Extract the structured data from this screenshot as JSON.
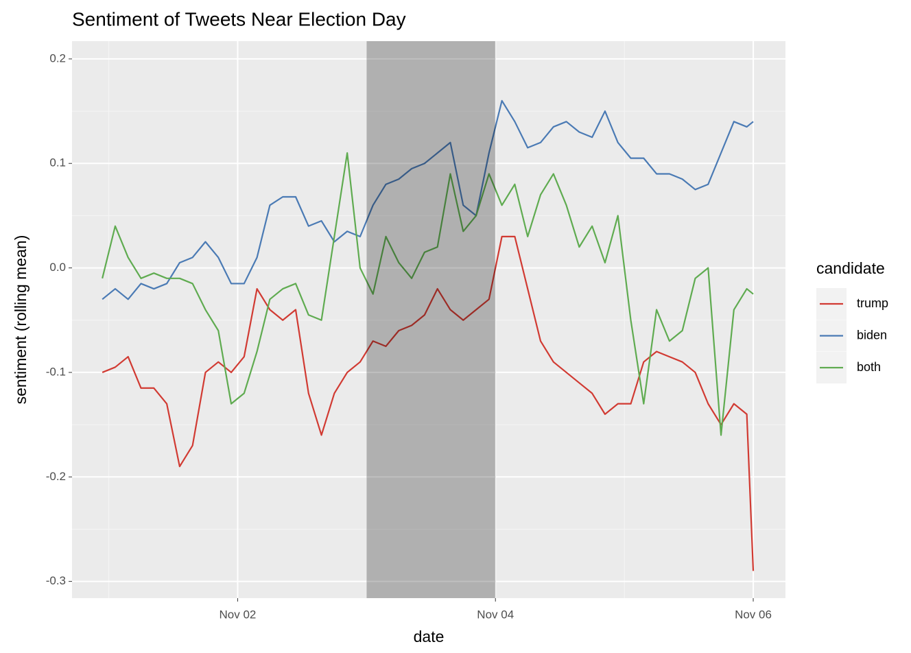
{
  "chart_data": {
    "type": "line",
    "title": "Sentiment of Tweets Near Election Day",
    "x_label": "date",
    "y_label": "sentiment (rolling mean)",
    "legend_title": "candidate",
    "legend": "right",
    "grid": true,
    "highlight": {
      "xlim": [
        3,
        4
      ],
      "color": "#000000",
      "opacity": 0.25
    },
    "xlim": [
      0.715,
      6.25
    ],
    "ylim": [
      -0.316,
      0.217
    ],
    "xticks": [
      {
        "value": 2,
        "label": "Nov 02"
      },
      {
        "value": 4,
        "label": "Nov 04"
      },
      {
        "value": 6,
        "label": "Nov 06"
      }
    ],
    "x_minor_ticks": [
      1,
      3,
      5
    ],
    "yticks": [
      {
        "value": -0.3,
        "label": "-0.3"
      },
      {
        "value": -0.2,
        "label": "-0.2"
      },
      {
        "value": -0.1,
        "label": "-0.1"
      },
      {
        "value": 0,
        "label": "0.0"
      },
      {
        "value": 0.1,
        "label": "0.1"
      },
      {
        "value": 0.2,
        "label": "0.2"
      }
    ],
    "y_minor_ticks": [
      -0.25,
      -0.15,
      -0.05,
      0.05,
      0.15
    ],
    "x": [
      0.95,
      1.05,
      1.15,
      1.25,
      1.35,
      1.45,
      1.55,
      1.65,
      1.75,
      1.85,
      1.95,
      2.05,
      2.15,
      2.25,
      2.35,
      2.45,
      2.55,
      2.65,
      2.75,
      2.85,
      2.95,
      3.05,
      3.15,
      3.25,
      3.35,
      3.45,
      3.55,
      3.65,
      3.75,
      3.85,
      3.95,
      4.05,
      4.15,
      4.25,
      4.35,
      4.45,
      4.55,
      4.65,
      4.75,
      4.85,
      4.95,
      5.05,
      5.15,
      5.25,
      5.35,
      5.45,
      5.55,
      5.65,
      5.75,
      5.85,
      5.95,
      6.0
    ],
    "series": [
      {
        "name": "trump",
        "color": "#d13a32",
        "values": [
          -0.1,
          -0.095,
          -0.085,
          -0.115,
          -0.115,
          -0.13,
          -0.19,
          -0.17,
          -0.1,
          -0.09,
          -0.1,
          -0.085,
          -0.02,
          -0.04,
          -0.05,
          -0.04,
          -0.12,
          -0.16,
          -0.12,
          -0.1,
          -0.09,
          -0.07,
          -0.075,
          -0.06,
          -0.055,
          -0.045,
          -0.02,
          -0.04,
          -0.05,
          -0.04,
          -0.03,
          0.03,
          0.03,
          -0.02,
          -0.07,
          -0.09,
          -0.1,
          -0.11,
          -0.12,
          -0.14,
          -0.13,
          -0.13,
          -0.09,
          -0.08,
          -0.085,
          -0.09,
          -0.1,
          -0.13,
          -0.15,
          -0.13,
          -0.14,
          -0.29
        ]
      },
      {
        "name": "biden",
        "color": "#4a7ab4",
        "values": [
          -0.03,
          -0.02,
          -0.03,
          -0.015,
          -0.02,
          -0.015,
          0.005,
          0.01,
          0.025,
          0.01,
          -0.015,
          -0.015,
          0.01,
          0.06,
          0.068,
          0.068,
          0.04,
          0.045,
          0.025,
          0.035,
          0.03,
          0.06,
          0.08,
          0.085,
          0.095,
          0.1,
          0.11,
          0.12,
          0.06,
          0.05,
          0.11,
          0.16,
          0.14,
          0.115,
          0.12,
          0.135,
          0.14,
          0.13,
          0.125,
          0.15,
          0.12,
          0.105,
          0.105,
          0.09,
          0.09,
          0.085,
          0.075,
          0.08,
          0.11,
          0.14,
          0.135,
          0.14
        ]
      },
      {
        "name": "both",
        "color": "#5fab50",
        "values": [
          -0.01,
          0.04,
          0.01,
          -0.01,
          -0.005,
          -0.01,
          -0.01,
          -0.015,
          -0.04,
          -0.06,
          -0.13,
          -0.12,
          -0.08,
          -0.03,
          -0.02,
          -0.015,
          -0.045,
          -0.05,
          0.03,
          0.11,
          0.0,
          -0.025,
          0.03,
          0.005,
          -0.01,
          0.015,
          0.02,
          0.09,
          0.035,
          0.05,
          0.09,
          0.06,
          0.08,
          0.03,
          0.07,
          0.09,
          0.06,
          0.02,
          0.04,
          0.005,
          0.05,
          -0.05,
          -0.13,
          -0.04,
          -0.07,
          -0.06,
          -0.01,
          0.0,
          -0.16,
          -0.04,
          -0.02,
          -0.025
        ]
      }
    ]
  }
}
